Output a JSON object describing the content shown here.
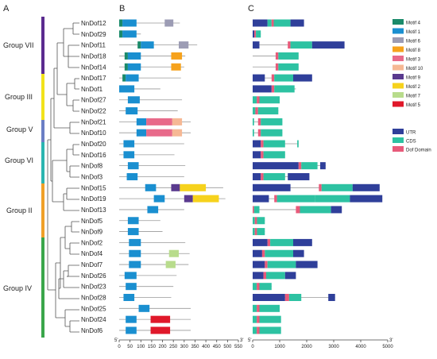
{
  "panels": {
    "a": "A",
    "b": "B",
    "c": "C"
  },
  "groups": [
    {
      "label": "Group VII",
      "color": "#5b2b8f"
    },
    {
      "label": "Group III",
      "color": "#f2e21b"
    },
    {
      "label": "Group V",
      "color": "#6b7ec4"
    },
    {
      "label": "Group VI",
      "color": "#2bb5b0"
    },
    {
      "label": "Group II",
      "color": "#f0a028"
    },
    {
      "label": "Group IV",
      "color": "#3aa64a"
    }
  ],
  "genes": [
    "NnDof12",
    "NnDof29",
    "NnDof11",
    "NnDof18",
    "NnDof14",
    "NnDof17",
    "NnDof1",
    "NnDof27",
    "NnDof22",
    "NnDof21",
    "NnDof10",
    "NnDof20",
    "NnDof16",
    "NnDof8",
    "NnDof3",
    "NnDof15",
    "NnDof19",
    "NnDof13",
    "NnDof5",
    "NnDof9",
    "NnDof2",
    "NnDof4",
    "NnDof7",
    "NnDof26",
    "NnDof23",
    "NnDof28",
    "NnDof25",
    "NnDof24",
    "NnDof6"
  ],
  "motif_legend": [
    {
      "name": "Motif 4",
      "color": "#1a8a6a"
    },
    {
      "name": "Motif 1",
      "color": "#1a8fd0"
    },
    {
      "name": "Motif 6",
      "color": "#9c9cb4"
    },
    {
      "name": "Motif 8",
      "color": "#f6a21c"
    },
    {
      "name": "Motif 3",
      "color": "#e86a8a"
    },
    {
      "name": "Motif 10",
      "color": "#f6b894"
    },
    {
      "name": "Motif 9",
      "color": "#5a3a8e"
    },
    {
      "name": "Motif 2",
      "color": "#f6d21c"
    },
    {
      "name": "Motif 7",
      "color": "#b8dc8c"
    },
    {
      "name": "Motif 5",
      "color": "#e0182a"
    }
  ],
  "structure_legend": [
    {
      "name": "UTR",
      "color": "#2f3f9a"
    },
    {
      "name": "CDS",
      "color": "#2dc2a2"
    },
    {
      "name": "Dof Domain",
      "color": "#e85a7a"
    }
  ],
  "motif_axis": {
    "ticks": [
      0,
      50,
      100,
      150,
      200,
      250,
      300,
      350,
      400,
      450,
      500,
      550
    ],
    "end5": "5'",
    "end3": "3'"
  },
  "structure_axis": {
    "ticks": [
      0,
      1000,
      2000,
      3000,
      4000,
      5000
    ],
    "end5": "5'",
    "end3": "3'"
  },
  "motif_rows": [
    {
      "len": 280,
      "motifs": [
        [
          0,
          15,
          "Motif 4"
        ],
        [
          15,
          80,
          "Motif 1"
        ],
        [
          210,
          250,
          "Motif 6"
        ]
      ]
    },
    {
      "len": 100,
      "motifs": [
        [
          0,
          15,
          "Motif 4"
        ],
        [
          15,
          80,
          "Motif 1"
        ]
      ]
    },
    {
      "len": 360,
      "motifs": [
        [
          85,
          100,
          "Motif 4"
        ],
        [
          100,
          160,
          "Motif 1"
        ],
        [
          275,
          320,
          "Motif 6"
        ]
      ]
    },
    {
      "len": 305,
      "motifs": [
        [
          25,
          40,
          "Motif 4"
        ],
        [
          40,
          100,
          "Motif 1"
        ],
        [
          240,
          290,
          "Motif 8"
        ]
      ]
    },
    {
      "len": 300,
      "motifs": [
        [
          25,
          40,
          "Motif 4"
        ],
        [
          40,
          100,
          "Motif 1"
        ],
        [
          240,
          285,
          "Motif 8"
        ]
      ]
    },
    {
      "len": 285,
      "motifs": [
        [
          15,
          30,
          "Motif 4"
        ],
        [
          30,
          90,
          "Motif 1"
        ]
      ]
    },
    {
      "len": 190,
      "motifs": [
        [
          0,
          70,
          "Motif 1"
        ]
      ]
    },
    {
      "len": 290,
      "motifs": [
        [
          40,
          95,
          "Motif 1"
        ]
      ]
    },
    {
      "len": 270,
      "motifs": [
        [
          30,
          85,
          "Motif 1"
        ]
      ]
    },
    {
      "len": 330,
      "motifs": [
        [
          80,
          125,
          "Motif 1"
        ],
        [
          125,
          245,
          "Motif 3"
        ],
        [
          245,
          290,
          "Motif 10"
        ]
      ]
    },
    {
      "len": 330,
      "motifs": [
        [
          80,
          125,
          "Motif 1"
        ],
        [
          125,
          245,
          "Motif 3"
        ],
        [
          245,
          290,
          "Motif 10"
        ]
      ]
    },
    {
      "len": 300,
      "motifs": [
        [
          20,
          70,
          "Motif 1"
        ]
      ]
    },
    {
      "len": 255,
      "motifs": [
        [
          20,
          70,
          "Motif 1"
        ]
      ]
    },
    {
      "len": 305,
      "motifs": [
        [
          40,
          90,
          "Motif 1"
        ]
      ]
    },
    {
      "len": 300,
      "motifs": [
        [
          35,
          85,
          "Motif 1"
        ]
      ]
    },
    {
      "len": 480,
      "motifs": [
        [
          120,
          170,
          "Motif 1"
        ],
        [
          240,
          280,
          "Motif 9"
        ],
        [
          280,
          400,
          "Motif 2"
        ]
      ]
    },
    {
      "len": 490,
      "motifs": [
        [
          160,
          210,
          "Motif 1"
        ],
        [
          300,
          340,
          "Motif 9"
        ],
        [
          340,
          460,
          "Motif 2"
        ]
      ]
    },
    {
      "len": 300,
      "motifs": [
        [
          130,
          180,
          "Motif 1"
        ]
      ]
    },
    {
      "len": 190,
      "motifs": [
        [
          40,
          90,
          "Motif 1"
        ]
      ]
    },
    {
      "len": 200,
      "motifs": [
        [
          40,
          90,
          "Motif 1"
        ]
      ]
    },
    {
      "len": 305,
      "motifs": [
        [
          45,
          100,
          "Motif 1"
        ]
      ]
    },
    {
      "len": 325,
      "motifs": [
        [
          45,
          100,
          "Motif 1"
        ],
        [
          230,
          275,
          "Motif 7"
        ]
      ]
    },
    {
      "len": 320,
      "motifs": [
        [
          45,
          100,
          "Motif 1"
        ],
        [
          215,
          260,
          "Motif 7"
        ]
      ]
    },
    {
      "len": 265,
      "motifs": [
        [
          25,
          80,
          "Motif 1"
        ]
      ]
    },
    {
      "len": 250,
      "motifs": [
        [
          30,
          80,
          "Motif 1"
        ]
      ]
    },
    {
      "len": 240,
      "motifs": [
        [
          20,
          70,
          "Motif 1"
        ]
      ]
    },
    {
      "len": 330,
      "motifs": [
        [
          90,
          140,
          "Motif 1"
        ]
      ]
    },
    {
      "len": 330,
      "motifs": [
        [
          30,
          80,
          "Motif 1"
        ],
        [
          145,
          235,
          "Motif 5"
        ]
      ]
    },
    {
      "len": 330,
      "motifs": [
        [
          30,
          80,
          "Motif 1"
        ],
        [
          145,
          235,
          "Motif 5"
        ]
      ]
    }
  ],
  "structure_rows": [
    {
      "len": 1900,
      "segs": [
        [
          0,
          550,
          "UTR"
        ],
        [
          550,
          700,
          "CDS"
        ],
        [
          700,
          780,
          "Dof Domain"
        ],
        [
          780,
          1400,
          "CDS"
        ],
        [
          1400,
          1900,
          "UTR"
        ]
      ]
    },
    {
      "len": 300,
      "segs": [
        [
          0,
          60,
          "UTR"
        ],
        [
          60,
          120,
          "Dof Domain"
        ],
        [
          120,
          300,
          "CDS"
        ]
      ]
    },
    {
      "len": 3400,
      "segs": [
        [
          0,
          250,
          "UTR"
        ],
        [
          1300,
          1400,
          "Dof Domain"
        ],
        [
          1400,
          2200,
          "CDS"
        ],
        [
          2200,
          3400,
          "UTR"
        ]
      ]
    },
    {
      "len": 1700,
      "segs": [
        [
          850,
          950,
          "Dof Domain"
        ],
        [
          950,
          1700,
          "CDS"
        ]
      ]
    },
    {
      "len": 1700,
      "segs": [
        [
          850,
          950,
          "Dof Domain"
        ],
        [
          950,
          1700,
          "CDS"
        ]
      ]
    },
    {
      "len": 2200,
      "segs": [
        [
          0,
          450,
          "UTR"
        ],
        [
          700,
          800,
          "Dof Domain"
        ],
        [
          800,
          1500,
          "CDS"
        ],
        [
          1500,
          2200,
          "UTR"
        ]
      ]
    },
    {
      "len": 1600,
      "segs": [
        [
          0,
          700,
          "UTR"
        ],
        [
          700,
          800,
          "Dof Domain"
        ],
        [
          800,
          1550,
          "CDS"
        ]
      ]
    },
    {
      "len": 1000,
      "segs": [
        [
          0,
          150,
          "CDS"
        ],
        [
          150,
          250,
          "Dof Domain"
        ],
        [
          250,
          1000,
          "CDS"
        ]
      ]
    },
    {
      "len": 950,
      "segs": [
        [
          0,
          100,
          "CDS"
        ],
        [
          100,
          200,
          "Dof Domain"
        ],
        [
          200,
          950,
          "CDS"
        ]
      ]
    },
    {
      "len": 1100,
      "segs": [
        [
          0,
          50,
          "CDS"
        ],
        [
          200,
          300,
          "Dof Domain"
        ],
        [
          300,
          1100,
          "CDS"
        ]
      ]
    },
    {
      "len": 1100,
      "segs": [
        [
          0,
          50,
          "CDS"
        ],
        [
          200,
          300,
          "Dof Domain"
        ],
        [
          300,
          1100,
          "CDS"
        ]
      ]
    },
    {
      "len": 1700,
      "segs": [
        [
          0,
          300,
          "UTR"
        ],
        [
          300,
          400,
          "Dof Domain"
        ],
        [
          400,
          1200,
          "CDS"
        ],
        [
          1650,
          1700,
          "CDS"
        ]
      ]
    },
    {
      "len": 1200,
      "segs": [
        [
          0,
          300,
          "UTR"
        ],
        [
          300,
          400,
          "Dof Domain"
        ],
        [
          400,
          1200,
          "CDS"
        ]
      ]
    },
    {
      "len": 2700,
      "segs": [
        [
          0,
          1700,
          "UTR"
        ],
        [
          1700,
          1800,
          "Dof Domain"
        ],
        [
          1800,
          2400,
          "CDS"
        ],
        [
          2500,
          2700,
          "UTR"
        ]
      ]
    },
    {
      "len": 2100,
      "segs": [
        [
          0,
          300,
          "UTR"
        ],
        [
          300,
          400,
          "Dof Domain"
        ],
        [
          400,
          1200,
          "CDS"
        ],
        [
          1300,
          2100,
          "UTR"
        ]
      ]
    },
    {
      "len": 4700,
      "segs": [
        [
          0,
          1400,
          "UTR"
        ],
        [
          2450,
          2550,
          "Dof Domain"
        ],
        [
          2550,
          3700,
          "CDS"
        ],
        [
          3700,
          4700,
          "UTR"
        ]
      ]
    },
    {
      "len": 4800,
      "segs": [
        [
          0,
          600,
          "UTR"
        ],
        [
          800,
          900,
          "Dof Domain"
        ],
        [
          900,
          2300,
          "CDS"
        ],
        [
          2300,
          3600,
          "CDS"
        ],
        [
          3600,
          4800,
          "UTR"
        ]
      ]
    },
    {
      "len": 3300,
      "segs": [
        [
          0,
          50,
          "Dof Domain"
        ],
        [
          50,
          250,
          "CDS"
        ],
        [
          1600,
          1750,
          "Dof Domain"
        ],
        [
          1750,
          2900,
          "CDS"
        ],
        [
          2900,
          3300,
          "UTR"
        ]
      ]
    },
    {
      "len": 450,
      "segs": [
        [
          0,
          80,
          "CDS"
        ],
        [
          80,
          160,
          "Dof Domain"
        ],
        [
          160,
          450,
          "CDS"
        ]
      ]
    },
    {
      "len": 450,
      "segs": [
        [
          0,
          80,
          "CDS"
        ],
        [
          80,
          160,
          "Dof Domain"
        ],
        [
          160,
          450,
          "CDS"
        ]
      ]
    },
    {
      "len": 2200,
      "segs": [
        [
          0,
          550,
          "UTR"
        ],
        [
          550,
          650,
          "Dof Domain"
        ],
        [
          650,
          1500,
          "CDS"
        ],
        [
          1500,
          2200,
          "UTR"
        ]
      ]
    },
    {
      "len": 1900,
      "segs": [
        [
          0,
          350,
          "UTR"
        ],
        [
          350,
          450,
          "Dof Domain"
        ],
        [
          450,
          1500,
          "CDS"
        ],
        [
          1500,
          1900,
          "UTR"
        ]
      ]
    },
    {
      "len": 2400,
      "segs": [
        [
          0,
          450,
          "UTR"
        ],
        [
          450,
          550,
          "Dof Domain"
        ],
        [
          550,
          1600,
          "CDS"
        ],
        [
          1600,
          2400,
          "UTR"
        ]
      ]
    },
    {
      "len": 1600,
      "segs": [
        [
          0,
          400,
          "UTR"
        ],
        [
          400,
          500,
          "Dof Domain"
        ],
        [
          500,
          1200,
          "CDS"
        ],
        [
          1200,
          1600,
          "UTR"
        ]
      ]
    },
    {
      "len": 700,
      "segs": [
        [
          0,
          150,
          "CDS"
        ],
        [
          150,
          250,
          "Dof Domain"
        ],
        [
          250,
          700,
          "CDS"
        ]
      ]
    },
    {
      "len": 3050,
      "segs": [
        [
          0,
          1200,
          "UTR"
        ],
        [
          1200,
          1350,
          "Dof Domain"
        ],
        [
          1350,
          1800,
          "CDS"
        ],
        [
          2800,
          3050,
          "UTR"
        ]
      ]
    },
    {
      "len": 1000,
      "segs": [
        [
          0,
          150,
          "CDS"
        ],
        [
          150,
          250,
          "Dof Domain"
        ],
        [
          250,
          1000,
          "CDS"
        ]
      ]
    },
    {
      "len": 1050,
      "segs": [
        [
          0,
          150,
          "CDS"
        ],
        [
          150,
          250,
          "Dof Domain"
        ],
        [
          250,
          1050,
          "CDS"
        ]
      ]
    },
    {
      "len": 1050,
      "segs": [
        [
          0,
          150,
          "CDS"
        ],
        [
          150,
          250,
          "Dof Domain"
        ],
        [
          250,
          1050,
          "CDS"
        ]
      ]
    }
  ]
}
